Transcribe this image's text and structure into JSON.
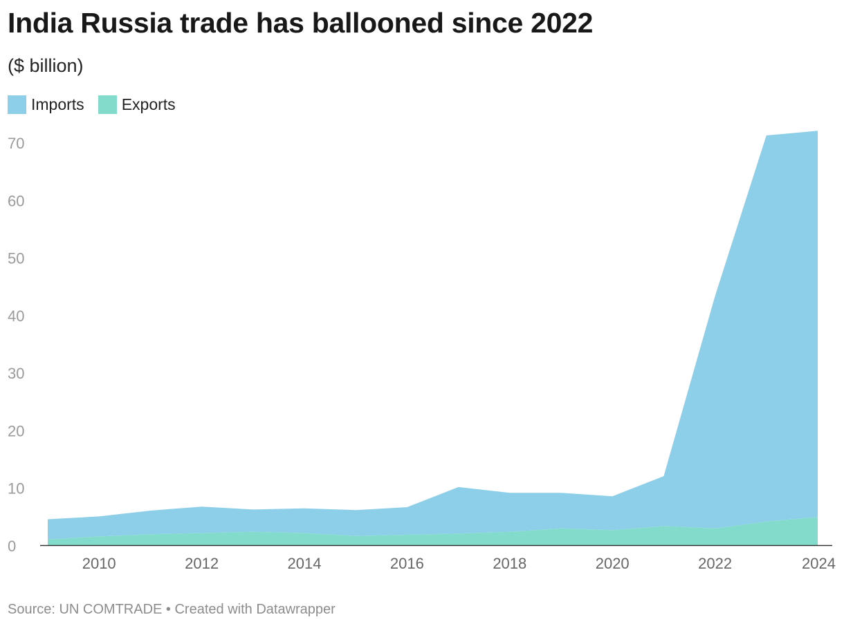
{
  "header": {
    "title": "India Russia trade has ballooned since 2022",
    "subtitle": "($ billion)"
  },
  "legend": [
    {
      "label": "Imports",
      "color": "#8dcfe8"
    },
    {
      "label": "Exports",
      "color": "#83dccb"
    }
  ],
  "footer": {
    "source": "Source: UN COMTRADE • Created with Datawrapper"
  },
  "chart_data": {
    "type": "area",
    "stacked": true,
    "x": [
      2009,
      2010,
      2011,
      2012,
      2013,
      2014,
      2015,
      2016,
      2017,
      2018,
      2019,
      2020,
      2021,
      2022,
      2023,
      2024
    ],
    "series": [
      {
        "name": "Exports",
        "color": "#83dccb",
        "values": [
          1.0,
          1.5,
          1.9,
          2.1,
          2.3,
          2.1,
          1.6,
          1.8,
          2.0,
          2.3,
          2.9,
          2.6,
          3.3,
          2.9,
          4.1,
          4.9
        ]
      },
      {
        "name": "Imports",
        "color": "#8dcfe8",
        "values": [
          3.5,
          3.5,
          4.1,
          4.6,
          3.9,
          4.3,
          4.5,
          4.8,
          8.1,
          6.8,
          6.2,
          5.9,
          8.7,
          40.4,
          67.1,
          67.1
        ]
      }
    ],
    "ylim": [
      0,
      72
    ],
    "yticks": [
      0,
      10,
      20,
      30,
      40,
      50,
      60,
      70
    ],
    "xticks": [
      2010,
      2012,
      2014,
      2016,
      2018,
      2020,
      2022,
      2024
    ],
    "grid": false,
    "legend_position": "top-left"
  }
}
